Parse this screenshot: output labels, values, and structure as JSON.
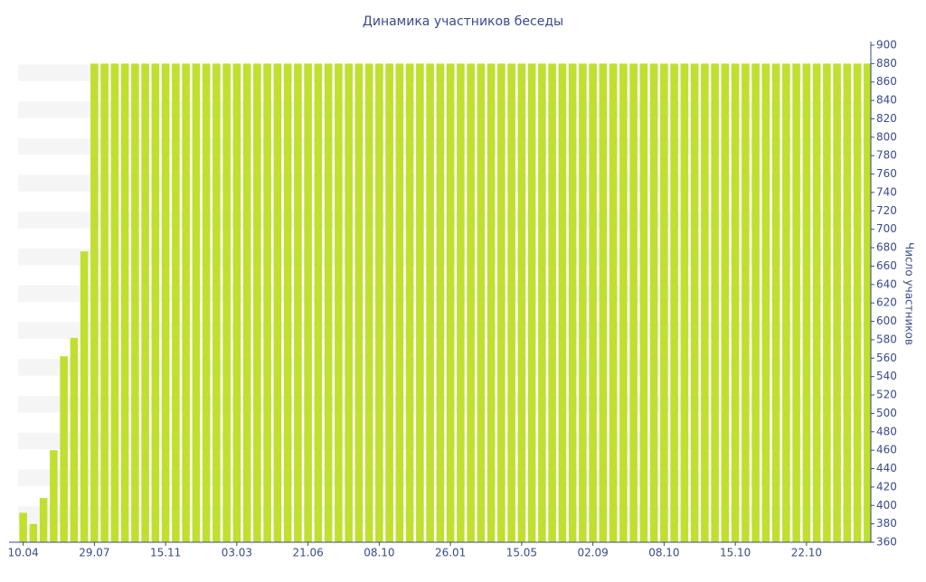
{
  "chart_data": {
    "type": "bar",
    "title": "Динамика участников беседы",
    "y_label": "Число участников",
    "categories": [
      "10.04",
      null,
      null,
      null,
      null,
      null,
      null,
      "29.07",
      null,
      null,
      null,
      null,
      null,
      null,
      "15.11",
      null,
      null,
      null,
      null,
      null,
      null,
      "03.03",
      null,
      null,
      null,
      null,
      null,
      null,
      "21.06",
      null,
      null,
      null,
      null,
      null,
      null,
      "08.10",
      null,
      null,
      null,
      null,
      null,
      null,
      "26.01",
      null,
      null,
      null,
      null,
      null,
      null,
      "15.05",
      null,
      null,
      null,
      null,
      null,
      null,
      "02.09",
      null,
      null,
      null,
      null,
      null,
      null,
      "08.10",
      null,
      null,
      null,
      null,
      null,
      null,
      "15.10",
      null,
      null,
      null,
      null,
      null,
      null,
      "22.10",
      null,
      null,
      null,
      null,
      null,
      null
    ],
    "values": [
      392,
      380,
      408,
      460,
      562,
      582,
      676,
      880,
      880,
      880,
      880,
      880,
      880,
      880,
      880,
      880,
      880,
      880,
      880,
      880,
      880,
      880,
      880,
      880,
      880,
      880,
      880,
      880,
      880,
      880,
      880,
      880,
      880,
      880,
      880,
      880,
      880,
      880,
      880,
      880,
      880,
      880,
      880,
      880,
      880,
      880,
      880,
      880,
      880,
      880,
      880,
      880,
      880,
      880,
      880,
      880,
      880,
      880,
      880,
      880,
      880,
      880,
      880,
      880,
      880,
      880,
      880,
      880,
      880,
      880,
      880,
      880,
      880,
      880,
      880,
      880,
      880,
      880,
      880,
      880,
      880,
      880,
      880,
      880
    ],
    "color": "#c0df2f",
    "ylim": [
      360,
      900
    ],
    "yticks": [
      360,
      380,
      400,
      420,
      440,
      460,
      480,
      500,
      520,
      540,
      560,
      580,
      600,
      620,
      640,
      660,
      680,
      700,
      720,
      740,
      760,
      780,
      800,
      820,
      840,
      860,
      880,
      900
    ],
    "y_axis_side": "right",
    "band_stripes": true
  }
}
